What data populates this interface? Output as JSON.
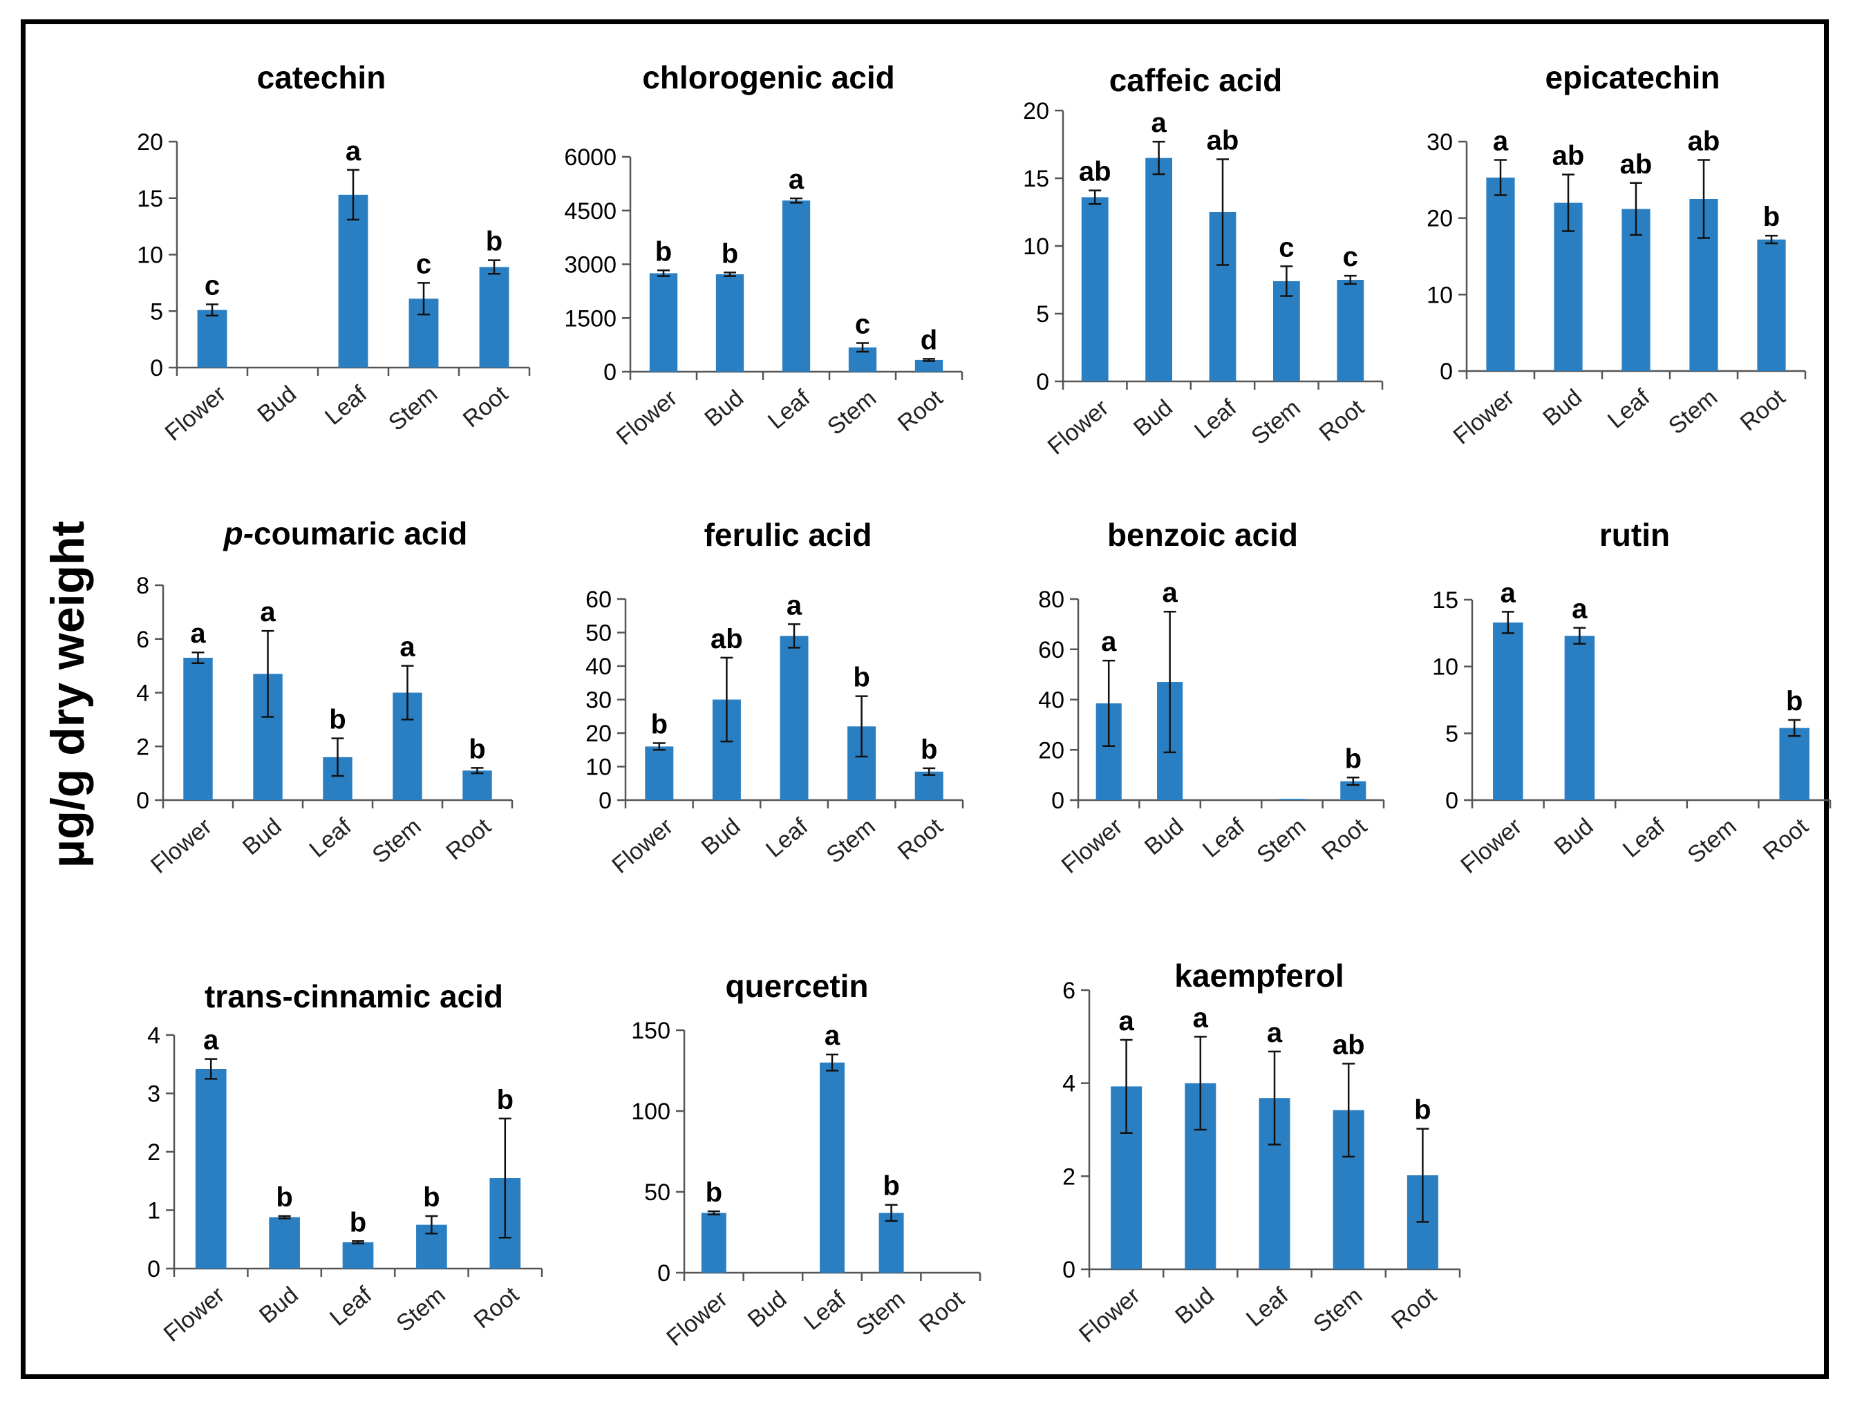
{
  "figure": {
    "ylabel": "μg/g dry weight"
  },
  "style": {
    "bar_color": "#2A7FC3",
    "axis_color": "#555555",
    "text_color": "#000000"
  },
  "chart_data": [
    {
      "type": "bar",
      "title": "catechin",
      "title_prefix": "",
      "categories": [
        "Flower",
        "Bud",
        "Leaf",
        "Stem",
        "Root"
      ],
      "values": [
        5.1,
        null,
        15.3,
        6.1,
        8.9
      ],
      "errors": [
        0.5,
        null,
        2.2,
        1.4,
        0.6
      ],
      "letters": [
        "c",
        "",
        "a",
        "c",
        "b"
      ],
      "ylim": [
        0,
        20
      ],
      "yticks": [
        0,
        5,
        10,
        15,
        20
      ]
    },
    {
      "type": "bar",
      "title": "chlorogenic acid",
      "title_prefix": "",
      "categories": [
        "Flower",
        "Bud",
        "Leaf",
        "Stem",
        "Root"
      ],
      "values": [
        2750,
        2720,
        4780,
        680,
        330
      ],
      "errors": [
        80,
        50,
        60,
        120,
        30
      ],
      "letters": [
        "b",
        "b",
        "a",
        "c",
        "d"
      ],
      "ylim": [
        0,
        6000
      ],
      "yticks": [
        0,
        1500,
        3000,
        4500,
        6000
      ]
    },
    {
      "type": "bar",
      "title": "caffeic acid",
      "title_prefix": "",
      "categories": [
        "Flower",
        "Bud",
        "Leaf",
        "Stem",
        "Root"
      ],
      "values": [
        13.6,
        16.5,
        12.5,
        7.4,
        7.5
      ],
      "errors": [
        0.5,
        1.2,
        3.9,
        1.1,
        0.3
      ],
      "letters": [
        "ab",
        "a",
        "ab",
        "c",
        "c"
      ],
      "ylim": [
        0,
        20
      ],
      "yticks": [
        0,
        5,
        10,
        15,
        20
      ]
    },
    {
      "type": "bar",
      "title": "epicatechin",
      "title_prefix": "",
      "categories": [
        "Flower",
        "Bud",
        "Leaf",
        "Stem",
        "Root"
      ],
      "values": [
        25.3,
        22.0,
        21.2,
        22.5,
        17.2
      ],
      "errors": [
        2.3,
        3.7,
        3.4,
        5.1,
        0.5
      ],
      "letters": [
        "a",
        "ab",
        "ab",
        "ab",
        "b"
      ],
      "ylim": [
        0,
        30
      ],
      "yticks": [
        0,
        10,
        20,
        30
      ]
    },
    {
      "type": "bar",
      "title": "coumaric acid",
      "title_prefix": "p-",
      "categories": [
        "Flower",
        "Bud",
        "Leaf",
        "Stem",
        "Root"
      ],
      "values": [
        5.3,
        4.7,
        1.6,
        4.0,
        1.1
      ],
      "errors": [
        0.2,
        1.6,
        0.7,
        1.0,
        0.1
      ],
      "letters": [
        "a",
        "a",
        "b",
        "a",
        "b"
      ],
      "ylim": [
        0,
        8
      ],
      "yticks": [
        0,
        2,
        4,
        6,
        8
      ]
    },
    {
      "type": "bar",
      "title": "ferulic acid",
      "title_prefix": "",
      "categories": [
        "Flower",
        "Bud",
        "Leaf",
        "Stem",
        "Root"
      ],
      "values": [
        16,
        30,
        49,
        22,
        8.5
      ],
      "errors": [
        1,
        12.5,
        3.5,
        9,
        1
      ],
      "letters": [
        "b",
        "ab",
        "a",
        "b",
        "b"
      ],
      "ylim": [
        0,
        60
      ],
      "yticks": [
        0,
        10,
        20,
        30,
        40,
        50,
        60
      ]
    },
    {
      "type": "bar",
      "title": "benzoic acid",
      "title_prefix": "",
      "categories": [
        "Flower",
        "Bud",
        "Leaf",
        "Stem",
        "Root"
      ],
      "values": [
        38.5,
        47,
        null,
        0.5,
        7.5
      ],
      "errors": [
        17,
        28,
        null,
        0,
        1.5
      ],
      "letters": [
        "a",
        "a",
        "",
        "",
        "b"
      ],
      "ylim": [
        0,
        80
      ],
      "yticks": [
        0,
        20,
        40,
        60,
        80
      ]
    },
    {
      "type": "bar",
      "title": "rutin",
      "title_prefix": "",
      "categories": [
        "Flower",
        "Bud",
        "Leaf",
        "Stem",
        "Root"
      ],
      "values": [
        13.3,
        12.3,
        null,
        null,
        5.4
      ],
      "errors": [
        0.8,
        0.6,
        null,
        null,
        0.6
      ],
      "letters": [
        "a",
        "a",
        "",
        "",
        "b"
      ],
      "ylim": [
        0,
        15
      ],
      "yticks": [
        0,
        5,
        10,
        15
      ]
    },
    {
      "type": "bar",
      "title": "trans-cinnamic acid",
      "title_prefix": "",
      "categories": [
        "Flower",
        "Bud",
        "Leaf",
        "Stem",
        "Root"
      ],
      "values": [
        3.42,
        0.88,
        0.45,
        0.75,
        1.55
      ],
      "errors": [
        0.17,
        0.02,
        0.02,
        0.15,
        1.02
      ],
      "letters": [
        "a",
        "b",
        "b",
        "b",
        "b"
      ],
      "ylim": [
        0,
        4
      ],
      "yticks": [
        0,
        1,
        2,
        3,
        4
      ]
    },
    {
      "type": "bar",
      "title": "quercetin",
      "title_prefix": "",
      "categories": [
        "Flower",
        "Bud",
        "Leaf",
        "Stem",
        "Root"
      ],
      "values": [
        37,
        null,
        130,
        37,
        null
      ],
      "errors": [
        1,
        null,
        5,
        5,
        null
      ],
      "letters": [
        "b",
        "",
        "a",
        "b",
        ""
      ],
      "ylim": [
        0,
        150
      ],
      "yticks": [
        0,
        50,
        100,
        150
      ]
    },
    {
      "type": "bar",
      "title": "kaempferol",
      "title_prefix": "",
      "categories": [
        "Flower",
        "Bud",
        "Leaf",
        "Stem",
        "Root"
      ],
      "values": [
        3.93,
        4.0,
        3.68,
        3.42,
        2.02
      ],
      "errors": [
        1.0,
        1.0,
        1.0,
        1.0,
        1.0
      ],
      "letters": [
        "a",
        "a",
        "a",
        "ab",
        "b"
      ],
      "ylim": [
        0,
        6
      ],
      "yticks": [
        0,
        2,
        4,
        6
      ]
    }
  ]
}
